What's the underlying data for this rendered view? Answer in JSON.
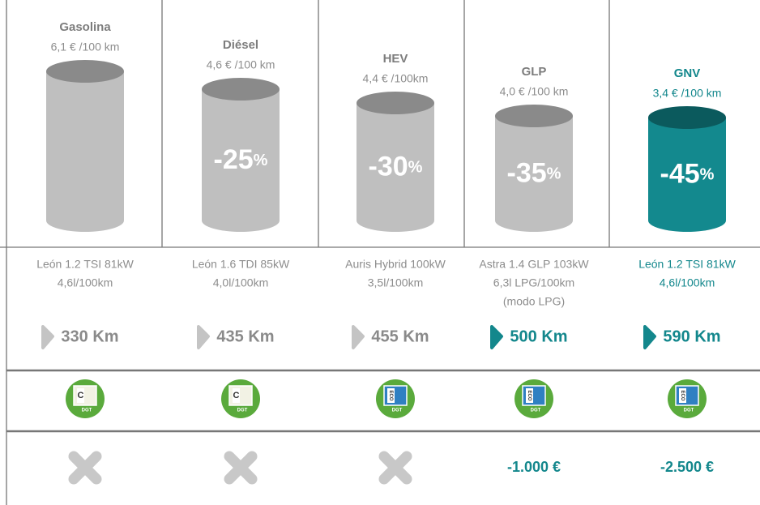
{
  "columns": [
    {
      "name": "Gasolina",
      "cost": "6,1 € /100 km",
      "model": [
        "León 1.2 TSI 81kW",
        "4,6l/100km"
      ],
      "range": "330 Km",
      "badge": "C"
    },
    {
      "name": "Diésel",
      "cost": "4,6 € /100 km",
      "saving": "-25",
      "unit": "%",
      "model": [
        "León 1.6 TDI 85kW",
        "4,0l/100km"
      ],
      "range": "435 Km",
      "badge": "C"
    },
    {
      "name": "HEV",
      "cost": "4,4 € /100km",
      "saving": "-30",
      "unit": "%",
      "model": [
        "Auris Hybrid 100kW",
        "3,5l/100km"
      ],
      "range": "455 Km",
      "badge": "ECO"
    },
    {
      "name": "GLP",
      "cost": "4,0 € /100 km",
      "saving": "-35",
      "unit": "%",
      "model": [
        "Astra 1.4 GLP 103kW",
        "6,3l LPG/100km",
        "(modo LPG)"
      ],
      "range": "500 Km",
      "badge": "ECO",
      "incentive": "-1.000 €"
    },
    {
      "name": "GNV",
      "cost": "3,4 € /100 km",
      "saving": "-45",
      "unit": "%",
      "model": [
        "León 1.2 TSI 81kW",
        "4,6l/100km"
      ],
      "range": "590 Km",
      "badge": "ECO",
      "incentive": "-2.500 €"
    }
  ],
  "badge_footer": "DGT"
}
